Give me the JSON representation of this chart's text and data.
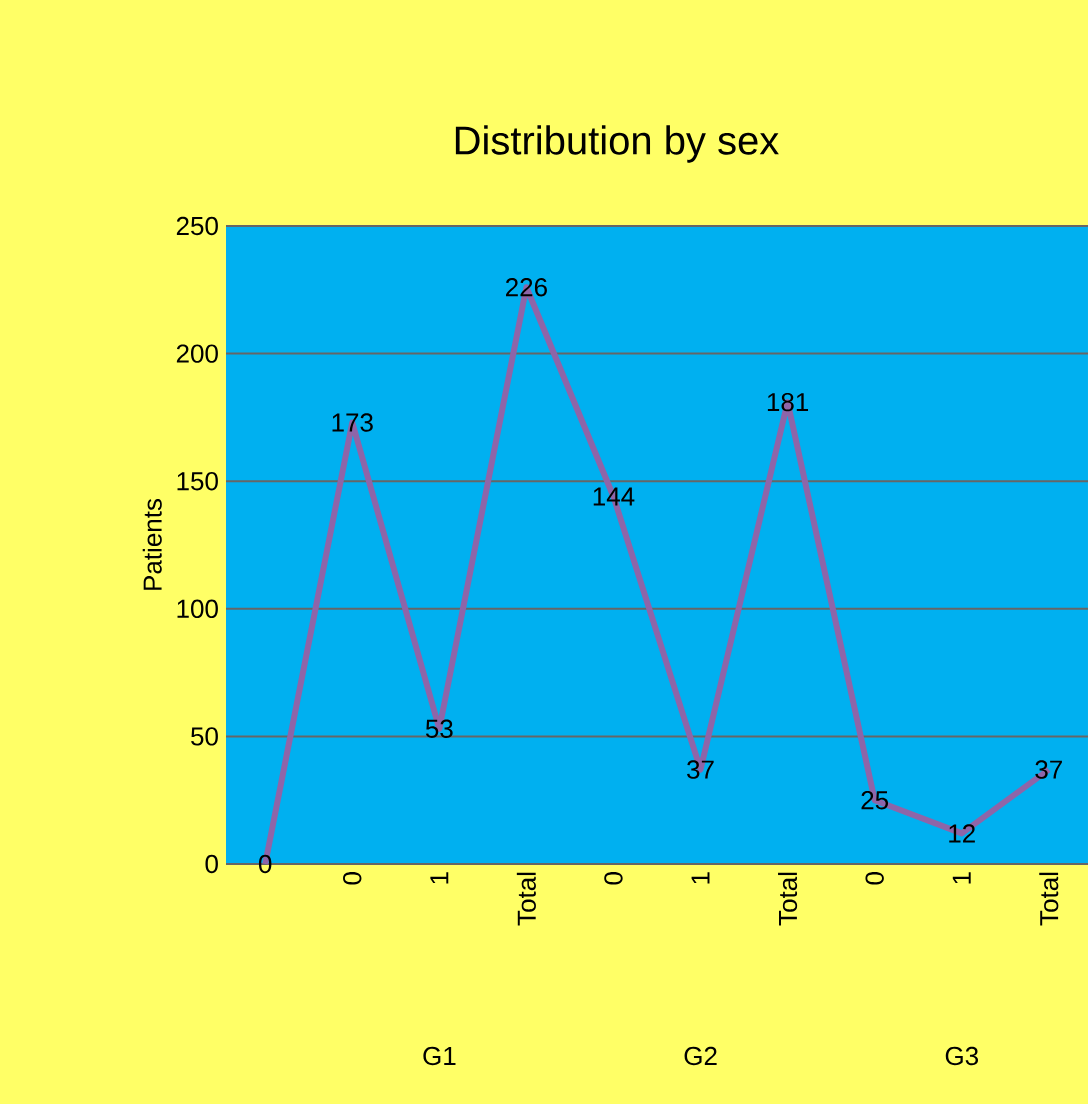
{
  "chart_data": {
    "type": "line",
    "title": "Distribution by sex",
    "ylabel": "Patients",
    "categories": [
      null,
      "0",
      "1",
      "Total",
      "0",
      "1",
      "Total",
      "0",
      "1",
      "Total"
    ],
    "series": [
      {
        "color": "#8e65a8",
        "values": [
          0,
          173,
          53,
          226,
          144,
          37,
          181,
          25,
          12,
          37
        ]
      }
    ],
    "ylim": [
      0,
      250
    ],
    "yticks": [
      0,
      50,
      100,
      150,
      200,
      250
    ],
    "grid": "y",
    "data_labels": true,
    "marker": "none",
    "line_style": "solid",
    "annotations": [
      "G1",
      "G2",
      "G3"
    ]
  }
}
